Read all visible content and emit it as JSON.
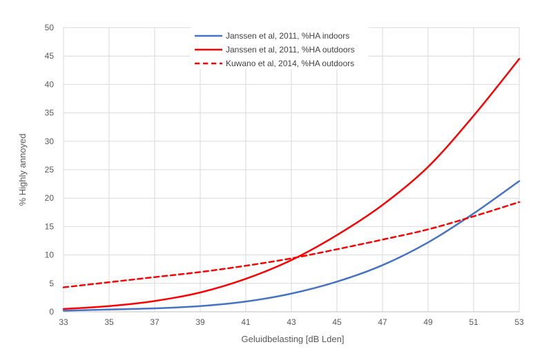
{
  "chart_data": {
    "type": "line",
    "xlabel": "Geluidbelasting [dB Lden]",
    "ylabel": "% Highly annoyed",
    "xlim": [
      33,
      53
    ],
    "ylim": [
      0,
      50
    ],
    "x_ticks": [
      33,
      35,
      37,
      39,
      41,
      43,
      45,
      47,
      49,
      51,
      53
    ],
    "y_ticks": [
      0,
      5,
      10,
      15,
      20,
      25,
      30,
      35,
      40,
      45,
      50
    ],
    "grid": "vertical-and-horizontal",
    "legend_position": "top-center",
    "x": [
      33,
      35,
      37,
      39,
      41,
      43,
      45,
      47,
      49,
      51,
      53
    ],
    "series": [
      {
        "name": "Janssen et al, 2011, %HA indoors",
        "color": "#4472C4",
        "style": "solid",
        "values": [
          0.2,
          0.4,
          0.6,
          1.0,
          1.8,
          3.2,
          5.3,
          8.2,
          12.2,
          17.3,
          23.0
        ]
      },
      {
        "name": "Janssen et al, 2011, %HA outdoors",
        "color": "#FF0000",
        "style": "solid",
        "values": [
          0.5,
          1.0,
          1.9,
          3.4,
          5.8,
          9.1,
          13.5,
          18.8,
          25.5,
          34.5,
          44.5
        ]
      },
      {
        "name": "Kuwano et al, 2014, %HA outdoors",
        "color": "#FF0000",
        "style": "dashed",
        "values": [
          4.3,
          5.2,
          6.1,
          7.0,
          8.1,
          9.4,
          11.0,
          12.7,
          14.5,
          16.8,
          19.3
        ]
      }
    ]
  }
}
